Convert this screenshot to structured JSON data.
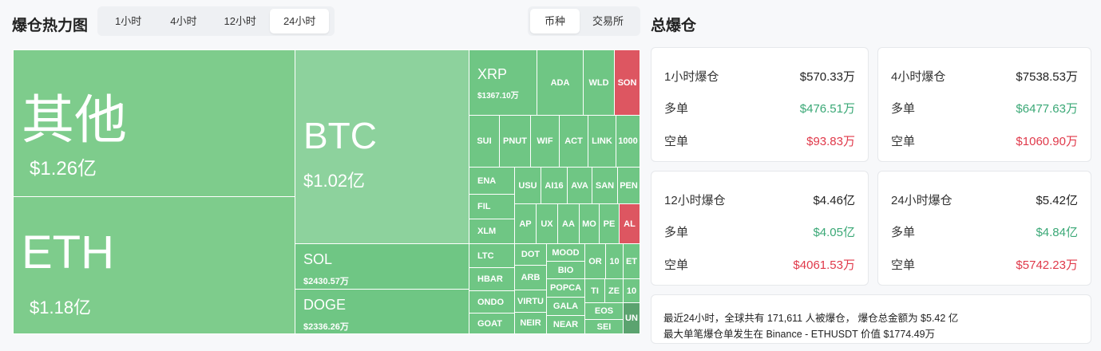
{
  "header": {
    "title": "爆仓热力图",
    "time_tabs": [
      "1小时",
      "4小时",
      "12小时",
      "24小时"
    ],
    "time_active": "24小时",
    "group_tabs": [
      "币种",
      "交易所"
    ],
    "group_active": "币种"
  },
  "treemap": {
    "other": {
      "sym": "其他",
      "val": "$1.26亿"
    },
    "eth": {
      "sym": "ETH",
      "val": "$1.18亿"
    },
    "btc": {
      "sym": "BTC",
      "val": "$1.02亿"
    },
    "sol": {
      "sym": "SOL",
      "val": "$2430.57万"
    },
    "doge": {
      "sym": "DOGE",
      "val": "$2336.26万"
    },
    "xrp": {
      "sym": "XRP",
      "val": "$1367.10万"
    },
    "small": {
      "ada": "ADA",
      "wld": "WLD",
      "son": "SON",
      "sui": "SUI",
      "pnut": "PNUT",
      "wif": "WIF",
      "act": "ACT",
      "link": "LINK",
      "k1000": "1000",
      "ena": "ENA",
      "usu": "USU",
      "ai16": "AI16",
      "ava": "AVA",
      "san": "SAN",
      "pen": "PEN",
      "fil": "FIL",
      "xlm": "XLM",
      "ap": "AP",
      "ux": "UX",
      "aa": "AA",
      "mo": "MO",
      "pe": "PE",
      "al": "AL",
      "ltc": "LTC",
      "dot": "DOT",
      "mood": "MOOD",
      "or": "OR",
      "ten": "10",
      "et": "ET",
      "hbar": "HBAR",
      "arb": "ARB",
      "bio": "BIO",
      "popca": "POPCA",
      "ti": "TI",
      "ze": "ZE",
      "ten2": "10",
      "ondo": "ONDO",
      "virt": "VIRTU",
      "gala": "GALA",
      "eos": "EOS",
      "un": "UN",
      "goat": "GOAT",
      "neir": "NEIR",
      "near": "NEAR",
      "sei": "SEI"
    }
  },
  "summary": {
    "title": "总爆仓",
    "long_label": "多单",
    "short_label": "空单",
    "cards": [
      {
        "label": "1小时爆仓",
        "total": "$570.33万",
        "long": "$476.51万",
        "short": "$93.83万"
      },
      {
        "label": "4小时爆仓",
        "total": "$7538.53万",
        "long": "$6477.63万",
        "short": "$1060.90万"
      },
      {
        "label": "12小时爆仓",
        "total": "$4.46亿",
        "long": "$4.05亿",
        "short": "$4061.53万"
      },
      {
        "label": "24小时爆仓",
        "total": "$5.42亿",
        "long": "$4.84亿",
        "short": "$5742.23万"
      }
    ],
    "note_line1": "最近24小时，全球共有 171,611 人被爆仓， 爆仓总金额为 $5.42 亿",
    "note_line2": "最大单笔爆仓单发生在 Binance - ETHUSDT 价值 $1774.49万"
  },
  "colors": {
    "long": "#3aa876",
    "short": "#e0394a",
    "tile_green": "#7ecc8c",
    "tile_red": "#dd5661"
  }
}
